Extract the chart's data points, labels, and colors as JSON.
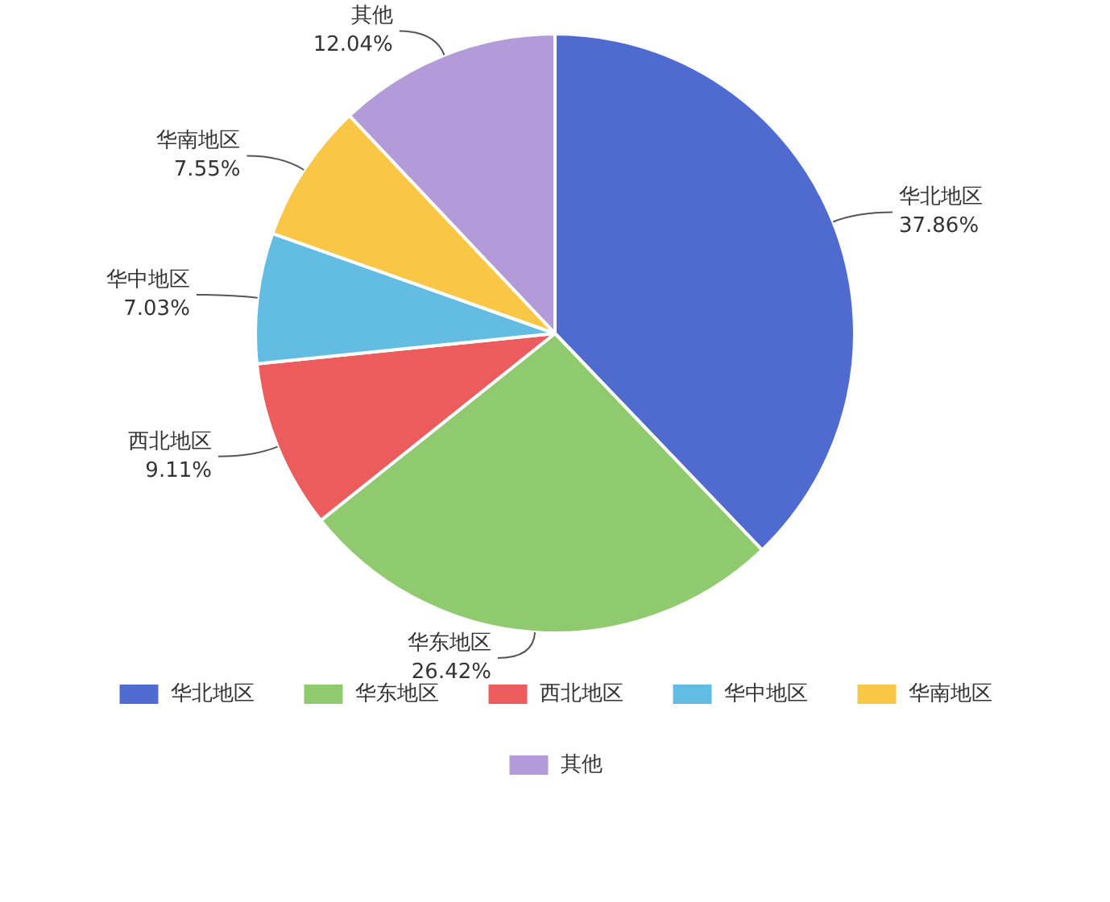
{
  "chart_data": {
    "type": "pie",
    "categories": [
      "华北地区",
      "华东地区",
      "西北地区",
      "华中地区",
      "华南地区",
      "其他"
    ],
    "values": [
      37.86,
      26.42,
      9.11,
      7.03,
      7.55,
      12.04
    ],
    "value_labels": [
      "37.86%",
      "26.42%",
      "9.11%",
      "7.03%",
      "7.55%",
      "12.04%"
    ],
    "colors": [
      "#4f6bd0",
      "#8fcb6e",
      "#ec5c5c",
      "#63bde2",
      "#f9c646",
      "#b39bd9"
    ],
    "legend": "bottom"
  }
}
